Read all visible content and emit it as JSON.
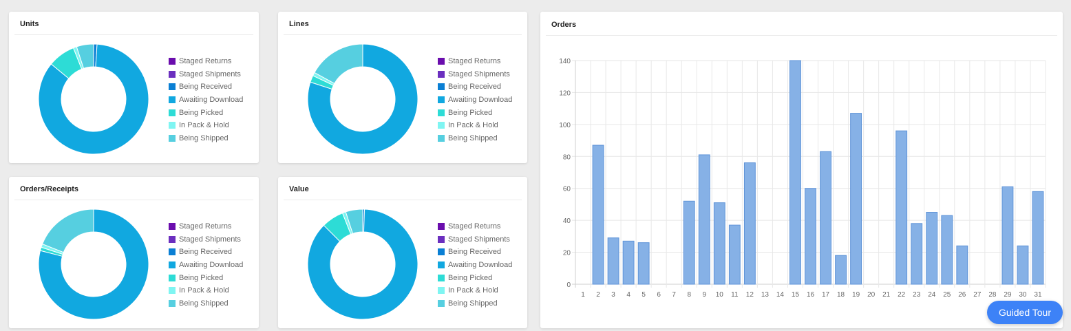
{
  "legend_items": [
    {
      "label": "Staged Returns",
      "color": "#6a0dad"
    },
    {
      "label": "Staged Shipments",
      "color": "#6b2fbf"
    },
    {
      "label": "Being Received",
      "color": "#0a7fd4"
    },
    {
      "label": "Awaiting Download",
      "color": "#11a8e0"
    },
    {
      "label": "Being Picked",
      "color": "#2ddcd6"
    },
    {
      "label": "In Pack & Hold",
      "color": "#7ff5f2"
    },
    {
      "label": "Being Shipped",
      "color": "#56cfe0"
    }
  ],
  "guided_tour_label": "Guided Tour",
  "chart_data": [
    {
      "type": "pie",
      "title": "Units",
      "categories": [
        "Staged Returns",
        "Staged Shipments",
        "Being Received",
        "Awaiting Download",
        "Being Picked",
        "In Pack & Hold",
        "Being Shipped"
      ],
      "values": [
        0,
        0,
        1,
        85,
        8,
        1,
        5
      ]
    },
    {
      "type": "pie",
      "title": "Lines",
      "categories": [
        "Staged Returns",
        "Staged Shipments",
        "Being Received",
        "Awaiting Download",
        "Being Picked",
        "In Pack & Hold",
        "Being Shipped"
      ],
      "values": [
        0,
        0,
        0,
        80,
        2,
        1,
        17
      ]
    },
    {
      "type": "pie",
      "title": "Orders/Receipts",
      "categories": [
        "Staged Returns",
        "Staged Shipments",
        "Being Received",
        "Awaiting Download",
        "Being Picked",
        "In Pack & Hold",
        "Being Shipped"
      ],
      "values": [
        0,
        0,
        0,
        79,
        1,
        1,
        19
      ]
    },
    {
      "type": "pie",
      "title": "Value",
      "categories": [
        "Staged Returns",
        "Staged Shipments",
        "Being Received",
        "Awaiting Download",
        "Being Picked",
        "In Pack & Hold",
        "Being Shipped"
      ],
      "values": [
        0,
        0,
        0.5,
        87,
        6.5,
        1,
        5
      ]
    },
    {
      "type": "bar",
      "title": "Orders",
      "categories": [
        "1",
        "2",
        "3",
        "4",
        "5",
        "6",
        "7",
        "8",
        "9",
        "10",
        "11",
        "12",
        "13",
        "14",
        "15",
        "16",
        "17",
        "18",
        "19",
        "20",
        "21",
        "22",
        "23",
        "24",
        "25",
        "26",
        "27",
        "28",
        "29",
        "30",
        "31"
      ],
      "values": [
        0,
        87,
        29,
        27,
        26,
        0,
        0,
        52,
        81,
        51,
        37,
        76,
        0,
        0,
        140,
        60,
        83,
        18,
        107,
        0,
        0,
        96,
        38,
        45,
        43,
        24,
        0,
        0,
        61,
        24,
        58
      ],
      "ylim": [
        0,
        140
      ],
      "yticks": [
        "0",
        "20",
        "40",
        "60",
        "80",
        "100",
        "120",
        "140"
      ],
      "grid": true,
      "bar_color": "#86b1e6",
      "bar_border": "#5e93d8"
    }
  ]
}
